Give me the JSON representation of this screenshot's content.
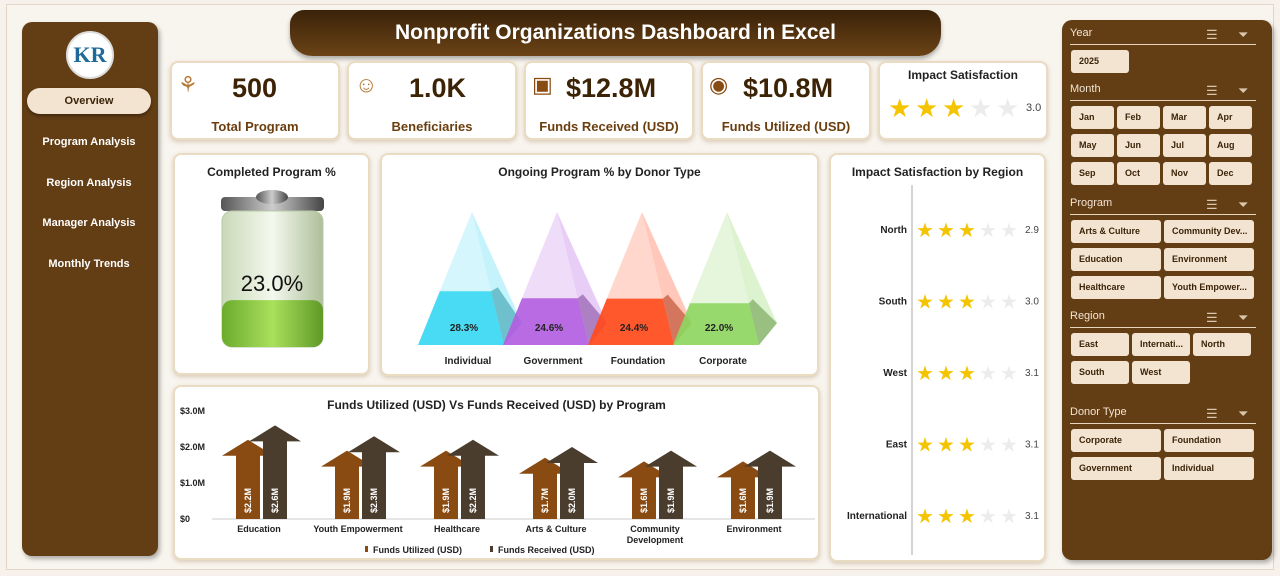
{
  "title": "Nonprofit Organizations Dashboard in Excel",
  "nav": {
    "logo": "KR",
    "items": [
      {
        "label": "Overview",
        "active": true
      },
      {
        "label": "Program Analysis"
      },
      {
        "label": "Region Analysis"
      },
      {
        "label": "Manager Analysis"
      },
      {
        "label": "Monthly Trends"
      }
    ]
  },
  "kpis": [
    {
      "icon": "hands-gear-icon",
      "value": "500",
      "label": "Total Program"
    },
    {
      "icon": "people-hand-icon",
      "value": "1.0K",
      "label": "Beneficiaries"
    },
    {
      "icon": "money-box-icon",
      "value": "$12.8M",
      "label": "Funds Received (USD)"
    },
    {
      "icon": "money-bag-icon",
      "value": "$10.8M",
      "label": "Funds Utilized (USD)"
    }
  ],
  "impact": {
    "label": "Impact Satisfaction",
    "value": "3.0",
    "rating": 3.0,
    "max": 5
  },
  "colors": {
    "brown": "#633d14",
    "util": "#8a4b12",
    "recv": "#4a3d2e",
    "star": "#f5c400"
  },
  "chart_data": [
    {
      "type": "gauge",
      "title": "Completed Program %",
      "value": 23.0,
      "label": "23.0%"
    },
    {
      "type": "bar",
      "title": "Ongoing Program % by Donor Type",
      "categories": [
        "Individual",
        "Government",
        "Foundation",
        "Corporate"
      ],
      "values": [
        28.3,
        24.6,
        24.4,
        22.0
      ],
      "labels": [
        "28.3%",
        "24.6%",
        "24.4%",
        "22.0%"
      ],
      "colors": [
        "#3ad8f2",
        "#b35ee0",
        "#ff4a1c",
        "#8ed660"
      ]
    },
    {
      "type": "bar",
      "title": "Funds Utilized (USD) Vs Funds Received (USD) by Program",
      "categories": [
        "Education",
        "Youth Empowerment",
        "Healthcare",
        "Arts & Culture",
        "Community Development",
        "Environment"
      ],
      "ylim": [
        0,
        3.0
      ],
      "yticks": [
        "$0",
        "$1.0M",
        "$2.0M",
        "$3.0M"
      ],
      "legend": "bottom",
      "series": [
        {
          "name": "Funds Utilized (USD)",
          "values": [
            2.2,
            1.9,
            1.9,
            1.7,
            1.6,
            1.6
          ],
          "labels": [
            "$2.2M",
            "$1.9M",
            "$1.9M",
            "$1.7M",
            "$1.6M",
            "$1.6M"
          ]
        },
        {
          "name": "Funds Received (USD)",
          "values": [
            2.6,
            2.3,
            2.2,
            2.0,
            1.9,
            1.9
          ],
          "labels": [
            "$2.6M",
            "$2.3M",
            "$2.2M",
            "$2.0M",
            "$1.9M",
            "$1.9M"
          ]
        }
      ]
    },
    {
      "type": "bar",
      "title": "Impact Satisfaction by Region",
      "categories": [
        "North",
        "South",
        "West",
        "East",
        "International"
      ],
      "values": [
        2.9,
        3.0,
        3.1,
        3.1,
        3.1
      ],
      "labels": [
        "2.9",
        "3.0",
        "3.1",
        "3.1",
        "3.1"
      ],
      "max": 5
    }
  ],
  "filters": {
    "year": {
      "title": "Year",
      "options": [
        "2025"
      ]
    },
    "month": {
      "title": "Month",
      "options": [
        "Jan",
        "Feb",
        "Mar",
        "Apr",
        "May",
        "Jun",
        "Jul",
        "Aug",
        "Sep",
        "Oct",
        "Nov",
        "Dec"
      ]
    },
    "program": {
      "title": "Program",
      "options": [
        "Arts & Culture",
        "Community Dev...",
        "Education",
        "Environment",
        "Healthcare",
        "Youth Empower..."
      ]
    },
    "region": {
      "title": "Region",
      "options": [
        "East",
        "Internati...",
        "North",
        "South",
        "West"
      ]
    },
    "donor": {
      "title": "Donor Type",
      "options": [
        "Corporate",
        "Foundation",
        "Government",
        "Individual"
      ]
    }
  }
}
